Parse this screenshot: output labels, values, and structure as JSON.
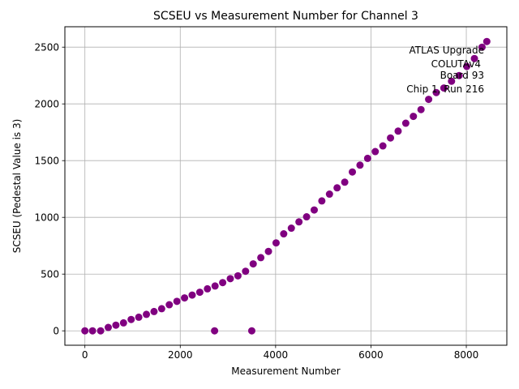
{
  "chart_data": {
    "type": "scatter",
    "title": "SCSEU vs Measurement Number for Channel 3",
    "xlabel": "Measurement Number",
    "ylabel": "SCSEU (Pedestal Value is 3)",
    "xlim": [
      -420,
      8850
    ],
    "ylim": [
      -127,
      2680
    ],
    "xticks": [
      0,
      2000,
      4000,
      6000,
      8000
    ],
    "yticks": [
      0,
      500,
      1000,
      1500,
      2000,
      2500
    ],
    "grid": true,
    "marker_color": "#800080",
    "annotation": {
      "lines": [
        "ATLAS Upgrade",
        "COLUTAv4",
        "Board 93",
        "Chip 1, Run 216"
      ],
      "placement": "top-right"
    },
    "series": [
      {
        "x": [
          0,
          160,
          330,
          490,
          650,
          810,
          970,
          1130,
          1290,
          1450,
          1610,
          1770,
          1930,
          2090,
          2250,
          2410,
          2570,
          2730,
          2890,
          3050,
          3210,
          3370,
          3530,
          3690,
          3850,
          4010,
          4170,
          4330,
          4490,
          4650,
          4810,
          4970,
          5130,
          5290,
          5450,
          5610,
          5770,
          5930,
          6090,
          6250,
          6410,
          6570,
          6730,
          6890,
          7050,
          7210,
          7370,
          7530,
          7690,
          7850,
          8010,
          8170,
          8330,
          8430,
          2720,
          3500
        ],
        "y": [
          0,
          0,
          0,
          30,
          50,
          70,
          100,
          120,
          145,
          170,
          195,
          230,
          260,
          290,
          315,
          340,
          370,
          395,
          425,
          460,
          485,
          525,
          590,
          645,
          700,
          775,
          855,
          905,
          960,
          1005,
          1065,
          1145,
          1205,
          1260,
          1310,
          1400,
          1460,
          1520,
          1580,
          1630,
          1700,
          1760,
          1830,
          1890,
          1950,
          2040,
          2100,
          2140,
          2200,
          2250,
          2330,
          2400,
          2500,
          2550,
          0,
          0
        ]
      }
    ]
  }
}
